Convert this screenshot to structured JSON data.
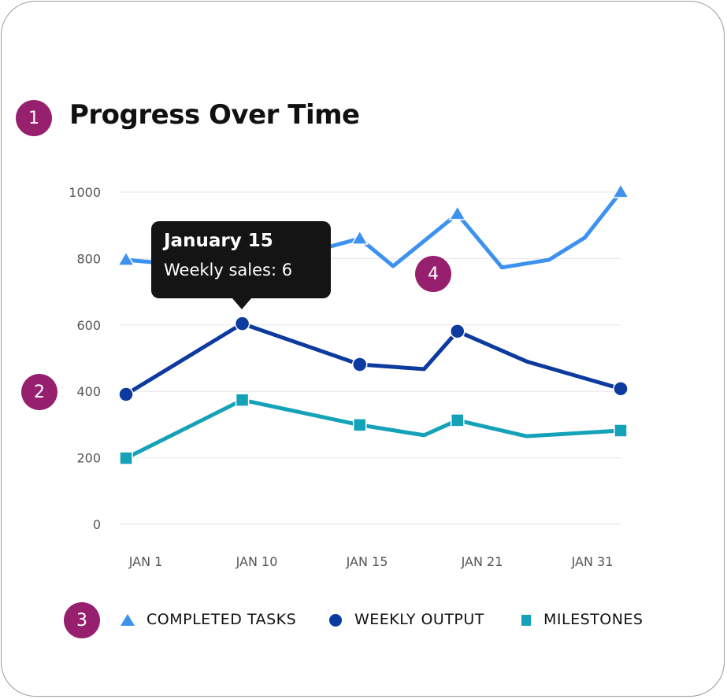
{
  "badges": [
    "1",
    "2",
    "3",
    "4"
  ],
  "chart_data": {
    "type": "line",
    "title": "Progress Over Time",
    "categories": [
      "JAN 1",
      "JAN 10",
      "JAN 15",
      "JAN 21",
      "JAN 31"
    ],
    "ylim": [
      0,
      1000
    ],
    "yticks": [
      0,
      200,
      400,
      600,
      800,
      1000
    ],
    "grid": true,
    "legend_position": "bottom",
    "series": [
      {
        "name": "COMPLETED TASKS",
        "color": "#3d92f0",
        "marker": "triangle",
        "points": [
          {
            "x": 0,
            "y": 796,
            "m": true
          },
          {
            "x": 0.94,
            "y": 765,
            "m": false
          },
          {
            "x": 1.89,
            "y": 860,
            "m": true
          },
          {
            "x": 2.16,
            "y": 777,
            "m": false
          },
          {
            "x": 2.68,
            "y": 934,
            "m": true
          },
          {
            "x": 3.04,
            "y": 773,
            "m": false
          },
          {
            "x": 3.42,
            "y": 796,
            "m": false
          },
          {
            "x": 3.71,
            "y": 863,
            "m": false
          },
          {
            "x": 4,
            "y": 1000,
            "m": true
          }
        ]
      },
      {
        "name": "WEEKLY OUTPUT",
        "color": "#0c3a9e",
        "marker": "circle",
        "points": [
          {
            "x": 0,
            "y": 391,
            "m": true
          },
          {
            "x": 0.94,
            "y": 604,
            "m": true
          },
          {
            "x": 1.89,
            "y": 481,
            "m": true
          },
          {
            "x": 2.41,
            "y": 467,
            "m": false
          },
          {
            "x": 2.68,
            "y": 581,
            "m": true
          },
          {
            "x": 3.24,
            "y": 490,
            "m": false
          },
          {
            "x": 4,
            "y": 408,
            "m": true
          }
        ]
      },
      {
        "name": "MILESTONES",
        "color": "#13a2b8",
        "marker": "square",
        "points": [
          {
            "x": 0,
            "y": 199,
            "m": true
          },
          {
            "x": 0.94,
            "y": 374,
            "m": true
          },
          {
            "x": 1.89,
            "y": 299,
            "m": true
          },
          {
            "x": 2.41,
            "y": 268,
            "m": false
          },
          {
            "x": 2.68,
            "y": 313,
            "m": true
          },
          {
            "x": 3.24,
            "y": 265,
            "m": false
          },
          {
            "x": 4,
            "y": 282,
            "m": true
          }
        ]
      }
    ],
    "tooltip": {
      "title": "January 15",
      "body": "Weekly sales: 6"
    }
  },
  "colors": {
    "badge": "#97206e",
    "tooltip_bg": "#141414"
  }
}
